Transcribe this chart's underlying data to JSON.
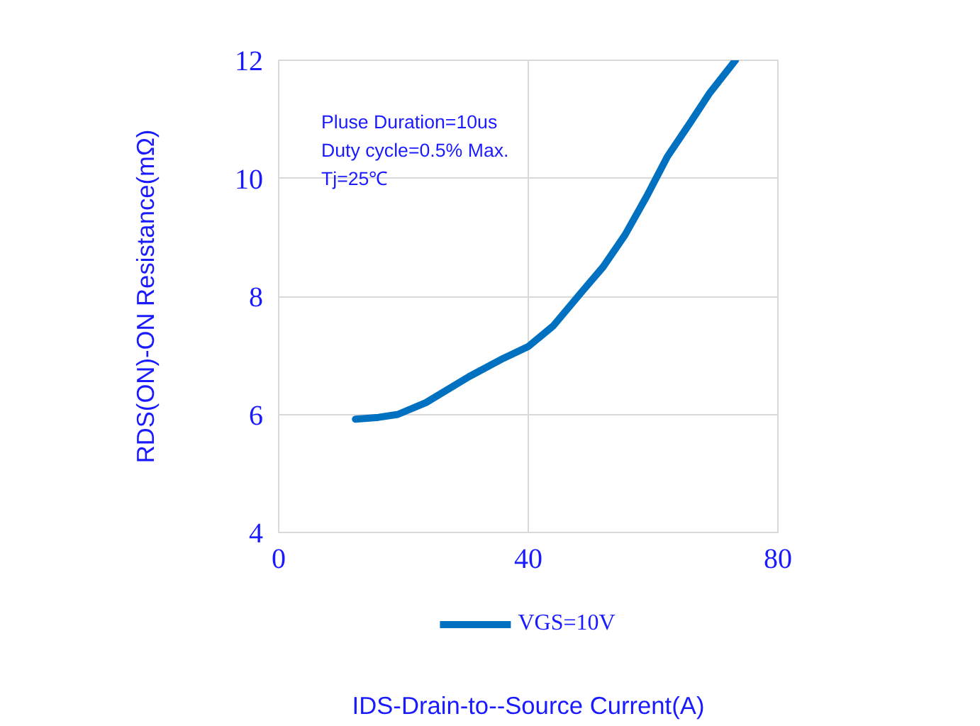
{
  "chart_data": {
    "type": "line",
    "xlabel": "IDS-Drain-to--Source Current(A)",
    "ylabel": "RDS(ON)-ON Resistance(mΩ)",
    "annotations": [
      "Pluse Duration=10us",
      "Duty cycle=0.5% Max.",
      "Tj=25℃"
    ],
    "series": [
      {
        "name": "VGS=10V",
        "color": "#0070c0",
        "x": [
          12.3,
          16,
          19.1,
          23.6,
          30.5,
          36,
          40,
          44,
          48.6,
          52,
          55.5,
          59,
          62.3,
          66,
          69.1,
          73.2
        ],
        "values": [
          5.92,
          5.95,
          6.0,
          6.2,
          6.64,
          6.95,
          7.15,
          7.5,
          8.08,
          8.5,
          9.04,
          9.7,
          10.37,
          10.95,
          11.45,
          12.0
        ]
      }
    ],
    "xlim": [
      0,
      80
    ],
    "xticks": [
      0,
      40,
      80
    ],
    "ylim": [
      4,
      12
    ],
    "yticks": [
      4,
      6,
      8,
      10,
      12
    ],
    "grid": true,
    "legend": "bottom",
    "marker": "none",
    "line_style": "solid"
  }
}
